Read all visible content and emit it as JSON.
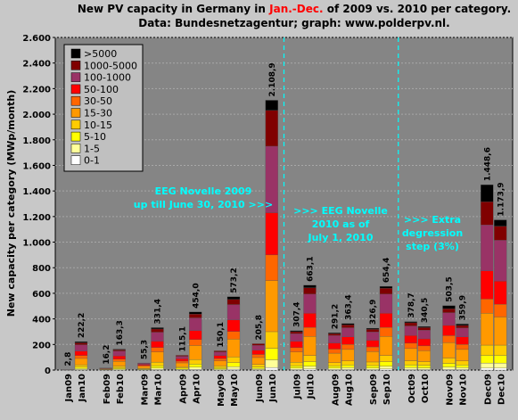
{
  "chart_data": {
    "type": "stacked-bar",
    "title_parts": [
      "New PV capacity in Germany in ",
      "Jan.-Dec.",
      " of 2009 vs. 2010 per category."
    ],
    "subtitle": "Data: Bundesnetzagentur; graph: www.polderpv.nl.",
    "y_label": "New capacity per category (MWp/month)",
    "categories": [
      "Jan09",
      "Jan10",
      "Feb09",
      "Feb10",
      "Mar09",
      "Mar10",
      "Apr09",
      "Apr10",
      "May09",
      "May10",
      "Jun09",
      "Jun10",
      "Jul09",
      "Jul10",
      "Aug09",
      "Aug10",
      "Sep09",
      "Sep10",
      "Oct09",
      "Oct10",
      "Nov09",
      "Nov10",
      "Dec09",
      "Dec10"
    ],
    "total_labels": [
      "2,8",
      "222,2",
      "16,2",
      "163,3",
      "55,3",
      "331,4",
      "115,1",
      "454,0",
      "150,1",
      "573,2",
      "205,8",
      "2.108,9",
      "307,4",
      "663,1",
      "291,2",
      "363,4",
      "326,9",
      "654,4",
      "378,7",
      "340,5",
      "503,5",
      "359,9",
      "1.448,6",
      "1.173,9"
    ],
    "series": [
      {
        "name": "0-1",
        "color": "#ffffff",
        "values": [
          0.1,
          3,
          0.3,
          2,
          1,
          4,
          2,
          6,
          2,
          7,
          3,
          20,
          4,
          8,
          4,
          5,
          4,
          8,
          5,
          4,
          6,
          5,
          15,
          15
        ]
      },
      {
        "name": "1-5",
        "color": "#ffff99",
        "values": [
          0.2,
          8,
          1,
          6,
          3,
          12,
          5,
          16,
          6,
          20,
          8,
          60,
          12,
          22,
          11,
          14,
          12,
          22,
          14,
          13,
          18,
          14,
          40,
          40
        ]
      },
      {
        "name": "5-10",
        "color": "#ffff00",
        "values": [
          0.2,
          12,
          1.5,
          9,
          4,
          18,
          8,
          24,
          10,
          30,
          13,
          90,
          18,
          34,
          17,
          21,
          19,
          34,
          22,
          20,
          28,
          21,
          60,
          60
        ]
      },
      {
        "name": "10-15",
        "color": "#ffcc00",
        "values": [
          0.3,
          18,
          2,
          14,
          6,
          28,
          11,
          36,
          14,
          45,
          19,
          130,
          27,
          50,
          25,
          31,
          28,
          50,
          32,
          29,
          42,
          31,
          80,
          80
        ]
      },
      {
        "name": "15-30",
        "color": "#ff9900",
        "values": [
          0.8,
          50,
          5,
          38,
          15,
          80,
          30,
          110,
          40,
          140,
          55,
          400,
          80,
          150,
          75,
          90,
          82,
          150,
          95,
          85,
          120,
          90,
          250,
          220
        ]
      },
      {
        "name": "30-50",
        "color": "#ff6600",
        "values": [
          0.4,
          22,
          2,
          16,
          7,
          34,
          14,
          46,
          18,
          60,
          24,
          200,
          34,
          70,
          32,
          40,
          36,
          70,
          42,
          38,
          55,
          40,
          110,
          100
        ]
      },
      {
        "name": "50-100",
        "color": "#ff0000",
        "values": [
          0.5,
          35,
          2.4,
          26,
          9,
          50,
          18,
          70,
          24,
          90,
          33,
          330,
          50,
          110,
          48,
          58,
          52,
          110,
          60,
          55,
          80,
          58,
          220,
          180
        ]
      },
      {
        "name": "100-1000",
        "color": "#993366",
        "values": [
          0.3,
          50,
          2,
          38,
          8,
          70,
          20,
          100,
          28,
          120,
          38,
          520,
          60,
          150,
          58,
          72,
          65,
          150,
          75,
          68,
          100,
          70,
          360,
          320
        ]
      },
      {
        "name": "1000-5000",
        "color": "#800000",
        "values": [
          0,
          15,
          0,
          10,
          2.3,
          25,
          7.1,
          30,
          8.1,
          40,
          12.8,
          280,
          15,
          50,
          15,
          22,
          20,
          45,
          25,
          20,
          30,
          20,
          180,
          110
        ]
      },
      {
        "name": ">5000",
        "color": "#000000",
        "values": [
          0,
          9.2,
          0,
          4.3,
          0,
          10.4,
          0,
          16,
          0,
          21.2,
          0,
          78.9,
          7.4,
          19.1,
          6.2,
          10.4,
          8.9,
          15.4,
          8.7,
          8.5,
          24.5,
          10.9,
          133.6,
          48.9
        ]
      }
    ],
    "ylim": [
      0,
      2600
    ],
    "yticks": [
      0,
      200,
      400,
      600,
      800,
      {
        "value": 1000,
        "label": "1.000"
      },
      {
        "value": 1200,
        "label": "1.200"
      },
      {
        "value": 1400,
        "label": "1.400"
      },
      {
        "value": 1600,
        "label": "1.600"
      },
      {
        "value": 1800,
        "label": "1.800"
      },
      {
        "value": 2000,
        "label": "2.000"
      },
      {
        "value": 2200,
        "label": "2.200"
      },
      {
        "value": 2400,
        "label": "2.400"
      },
      {
        "value": 2600,
        "label": "2.600"
      }
    ],
    "grid": true,
    "annotations": [
      [
        "EEG Novelle 2009",
        "up till June 30, 2010 >>>"
      ],
      [
        ">>> EEG Novelle",
        "2010 as of",
        "July 1, 2010"
      ],
      [
        ">>> Extra",
        "degression",
        "step (3%)"
      ]
    ]
  }
}
